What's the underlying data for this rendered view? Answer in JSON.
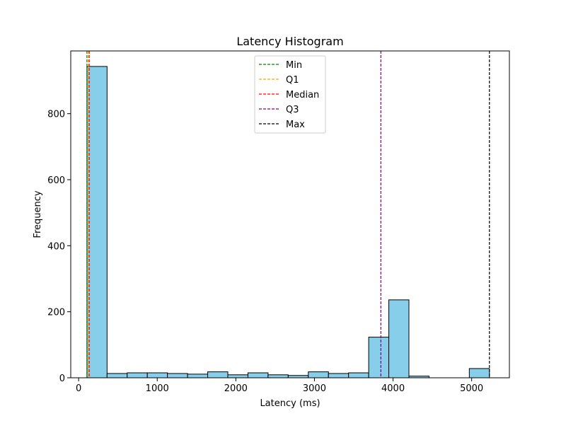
{
  "chart_data": {
    "type": "bar",
    "title": "Latency Histogram",
    "xlabel": "Latency (ms)",
    "ylabel": "Frequency",
    "xlim": [
      -100,
      5480
    ],
    "ylim": [
      0,
      990
    ],
    "x_ticks": [
      0,
      1000,
      2000,
      3000,
      4000,
      5000
    ],
    "y_ticks": [
      0,
      200,
      400,
      600,
      800
    ],
    "bar_color": "#87ceeb",
    "bar_edge_color": "#000000",
    "bins": [
      {
        "start": 106,
        "end": 362,
        "count": 943
      },
      {
        "start": 362,
        "end": 618,
        "count": 13
      },
      {
        "start": 618,
        "end": 874,
        "count": 15
      },
      {
        "start": 874,
        "end": 1130,
        "count": 15
      },
      {
        "start": 1130,
        "end": 1386,
        "count": 13
      },
      {
        "start": 1386,
        "end": 1642,
        "count": 11
      },
      {
        "start": 1642,
        "end": 1898,
        "count": 18
      },
      {
        "start": 1898,
        "end": 2154,
        "count": 9
      },
      {
        "start": 2154,
        "end": 2410,
        "count": 15
      },
      {
        "start": 2410,
        "end": 2666,
        "count": 9
      },
      {
        "start": 2666,
        "end": 2922,
        "count": 7
      },
      {
        "start": 2922,
        "end": 3178,
        "count": 18
      },
      {
        "start": 3178,
        "end": 3434,
        "count": 13
      },
      {
        "start": 3434,
        "end": 3690,
        "count": 15
      },
      {
        "start": 3690,
        "end": 3946,
        "count": 123
      },
      {
        "start": 3946,
        "end": 4202,
        "count": 236
      },
      {
        "start": 4202,
        "end": 4458,
        "count": 5
      },
      {
        "start": 4458,
        "end": 4714,
        "count": 0
      },
      {
        "start": 4714,
        "end": 4970,
        "count": 0
      },
      {
        "start": 4970,
        "end": 5226,
        "count": 28
      }
    ],
    "reference_lines": [
      {
        "name": "Min",
        "x": 106,
        "color": "#008000"
      },
      {
        "name": "Q1",
        "x": 125,
        "color": "#ffa500"
      },
      {
        "name": "Median",
        "x": 135,
        "color": "#ff0000"
      },
      {
        "name": "Q3",
        "x": 3845,
        "color": "#800080"
      },
      {
        "name": "Max",
        "x": 5226,
        "color": "#000000"
      }
    ],
    "legend_position": "upper center",
    "grid": false
  }
}
